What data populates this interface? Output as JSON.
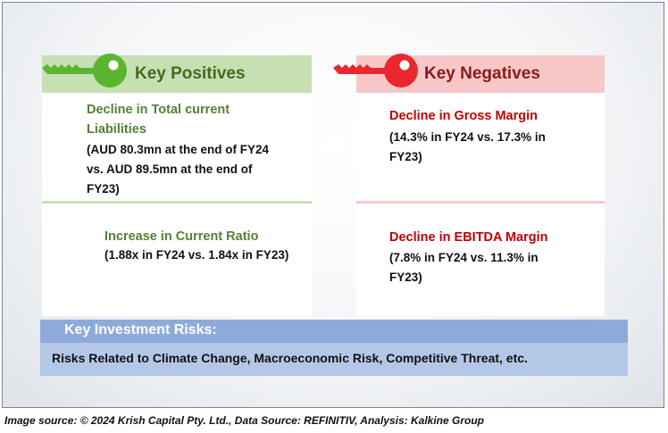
{
  "positives": {
    "header": "Key Positives",
    "items": [
      {
        "title_line1": "Decline in Total current",
        "title_line2": "Liabilities",
        "detail_line1": "(AUD 80.3mn at the end of FY24",
        "detail_line2": "vs. AUD 89.5mn at the end of",
        "detail_line3": "FY23)"
      },
      {
        "title": "Increase in Current Ratio",
        "detail": "(1.88x in FY24 vs. 1.84x in FY23)"
      }
    ]
  },
  "negatives": {
    "header": "Key Negatives",
    "items": [
      {
        "title": "Decline in Gross Margin",
        "detail_line1": "(14.3% in FY24 vs. 17.3% in",
        "detail_line2": "FY23)"
      },
      {
        "title": "Decline in EBITDA Margin",
        "detail_line1": "(7.8% in FY24 vs. 11.3% in",
        "detail_line2": "FY23)"
      }
    ]
  },
  "risks": {
    "header": "Key Investment Risks:",
    "body": "Risks Related to Climate Change, Macroeconomic Risk, Competitive Threat, etc."
  },
  "footer": "Image source: © 2024 Krish Capital Pty. Ltd., Data Source: REFINITIV, Analysis: Kalkine Group",
  "colors": {
    "positive_accent": "#538135",
    "positive_header_bg": "#c6e0b4",
    "key_green": "#5cb531",
    "negative_accent": "#c00000",
    "negative_header_bg": "#f8c8c8",
    "key_red": "#e8282e",
    "risk_header_bg": "#8eaadb",
    "risk_body_bg": "#b4c7e7"
  },
  "icons": [
    "green-key-icon",
    "red-key-icon"
  ]
}
